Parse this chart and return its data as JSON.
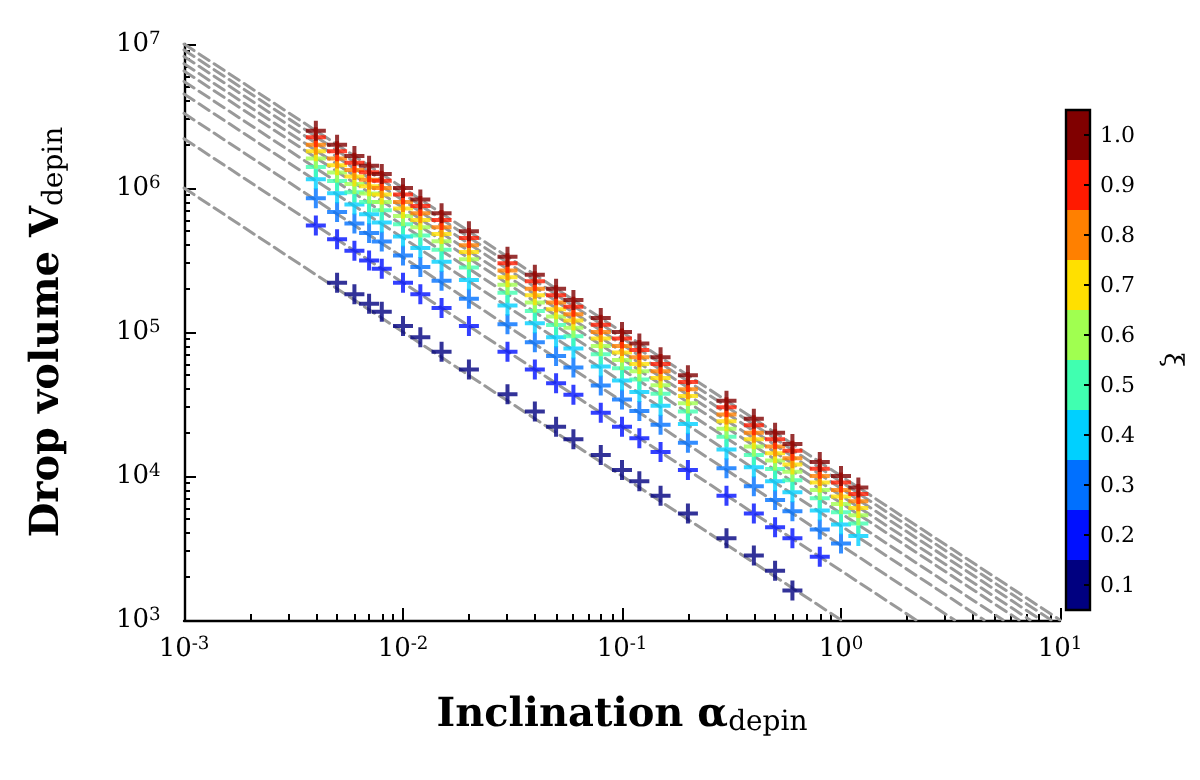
{
  "chart_data": {
    "type": "scatter",
    "xlabel": "Inclination α$_{depin}$",
    "ylabel": "Drop volume V$_{depin}$",
    "clabel": "ξ",
    "log": "xy",
    "grid": false,
    "marker": "cross",
    "xlim": [
      0.001,
      10
    ],
    "ylim": [
      1000,
      10000000
    ],
    "xticks": [
      {
        "value": 0.001,
        "label": "10$^{-3}$"
      },
      {
        "value": 0.01,
        "label": "10$^{-2}$"
      },
      {
        "value": 0.1,
        "label": "10$^{-1}$"
      },
      {
        "value": 1,
        "label": "10$^{0}$"
      },
      {
        "value": 10,
        "label": "10$^{1}$"
      }
    ],
    "yticks": [
      {
        "value": 1000,
        "label": "10$^{3}$"
      },
      {
        "value": 10000,
        "label": "10$^{4}$"
      },
      {
        "value": 100000,
        "label": "10$^{5}$"
      },
      {
        "value": 1000000,
        "label": "10$^{6}$"
      },
      {
        "value": 10000000,
        "label": "10$^{7}$"
      }
    ],
    "clim": [
      0.05,
      1.05
    ],
    "cticks": [
      0.1,
      0.2,
      0.3,
      0.4,
      0.5,
      0.6,
      0.7,
      0.8,
      0.9,
      {
        "value": 1,
        "label": "1.0"
      }
    ],
    "x": [
      0.004,
      0.005,
      0.006,
      0.007,
      0.008,
      0.01,
      0.012,
      0.015,
      0.02,
      0.03,
      0.04,
      0.05,
      0.06,
      0.08,
      0.1,
      0.12,
      0.15,
      0.2,
      0.3,
      0.4,
      0.5,
      0.6,
      0.8,
      1.0,
      1.2
    ],
    "series": [
      {
        "color": "#000080",
        "values": [
          null,
          220000,
          183000,
          157000,
          138000,
          110000,
          92000,
          73000,
          55000,
          37000,
          28000,
          22000,
          18000,
          14000,
          11000,
          9200,
          7300,
          5500,
          3700,
          2800,
          2200,
          1600,
          null,
          null,
          null
        ]
      },
      {
        "color": "#0010ff",
        "values": [
          550000,
          440000,
          367000,
          314000,
          275000,
          220000,
          183000,
          147000,
          110000,
          73000,
          55000,
          44000,
          36700,
          27500,
          22000,
          18300,
          14700,
          11000,
          7300,
          5500,
          4400,
          3700,
          2750,
          null,
          null
        ]
      },
      {
        "color": "#0070ff",
        "values": [
          850000,
          680000,
          567000,
          486000,
          425000,
          340000,
          283000,
          227000,
          170000,
          113000,
          85000,
          68000,
          56700,
          42500,
          34000,
          28300,
          22700,
          17000,
          11300,
          8500,
          6800,
          5700,
          4250,
          3400,
          null
        ]
      },
      {
        "color": "#00d0ff",
        "values": [
          1150000,
          920000,
          767000,
          657000,
          575000,
          460000,
          383000,
          307000,
          230000,
          153000,
          115000,
          92000,
          76700,
          57500,
          46000,
          38300,
          30700,
          23000,
          15300,
          11500,
          9200,
          7700,
          5750,
          4600,
          3830
        ]
      },
      {
        "color": "#40ffb0",
        "values": [
          1400000,
          1120000,
          933000,
          800000,
          700000,
          560000,
          467000,
          373000,
          280000,
          187000,
          140000,
          112000,
          93300,
          70000,
          56000,
          46700,
          37300,
          28000,
          18700,
          14000,
          11200,
          9330,
          7000,
          5600,
          4670
        ]
      },
      {
        "color": "#a0ff50",
        "values": [
          1600000,
          1280000,
          1067000,
          914000,
          800000,
          640000,
          533000,
          427000,
          320000,
          213000,
          160000,
          128000,
          107000,
          80000,
          64000,
          53300,
          42700,
          32000,
          21300,
          16000,
          12800,
          10700,
          8000,
          6400,
          5330
        ]
      },
      {
        "color": "#ffe000",
        "values": [
          1800000,
          1440000,
          1200000,
          1029000,
          900000,
          720000,
          600000,
          480000,
          360000,
          240000,
          180000,
          144000,
          120000,
          90000,
          72000,
          60000,
          48000,
          36000,
          24000,
          18000,
          14400,
          12000,
          9000,
          7200,
          6000
        ]
      },
      {
        "color": "#ff8000",
        "values": [
          2000000,
          1600000,
          1333000,
          1143000,
          1000000,
          800000,
          667000,
          533000,
          400000,
          267000,
          200000,
          160000,
          133000,
          100000,
          80000,
          66700,
          53300,
          40000,
          26700,
          20000,
          16000,
          13300,
          10000,
          8000,
          6670
        ]
      },
      {
        "color": "#ff1a00",
        "values": [
          2250000,
          1800000,
          1500000,
          1286000,
          1125000,
          900000,
          750000,
          600000,
          450000,
          300000,
          225000,
          180000,
          150000,
          112500,
          90000,
          75000,
          60000,
          45000,
          30000,
          22500,
          18000,
          15000,
          11250,
          9000,
          7500
        ]
      },
      {
        "color": "#800000",
        "values": [
          2500000,
          2000000,
          1667000,
          1429000,
          1250000,
          1000000,
          833000,
          667000,
          500000,
          333000,
          250000,
          200000,
          167000,
          125000,
          100000,
          83300,
          66700,
          50000,
          33300,
          25000,
          20000,
          16700,
          12500,
          10000,
          8330
        ]
      },
      {
        "type": "line",
        "line_style": "dashed",
        "marker": "none",
        "color": "#999999",
        "x": [
          0.001,
          1
        ],
        "values": [
          1000000,
          1000
        ]
      },
      {
        "type": "line",
        "line_style": "dashed",
        "marker": "none",
        "color": "#999999",
        "x": [
          0.001,
          2.2
        ],
        "values": [
          2200000,
          1000
        ]
      },
      {
        "type": "line",
        "line_style": "dashed",
        "marker": "none",
        "color": "#999999",
        "x": [
          0.001,
          3.3
        ],
        "values": [
          3300000,
          1000
        ]
      },
      {
        "type": "line",
        "line_style": "dashed",
        "marker": "none",
        "color": "#999999",
        "x": [
          0.001,
          4.5
        ],
        "values": [
          4500000,
          1000
        ]
      },
      {
        "type": "line",
        "line_style": "dashed",
        "marker": "none",
        "color": "#999999",
        "x": [
          0.001,
          5.5
        ],
        "values": [
          5500000,
          1000
        ]
      },
      {
        "type": "line",
        "line_style": "dashed",
        "marker": "none",
        "color": "#999999",
        "x": [
          0.001,
          6.5
        ],
        "values": [
          6500000,
          1000
        ]
      },
      {
        "type": "line",
        "line_style": "dashed",
        "marker": "none",
        "color": "#999999",
        "x": [
          0.001,
          7.3
        ],
        "values": [
          7300000,
          1000
        ]
      },
      {
        "type": "line",
        "line_style": "dashed",
        "marker": "none",
        "color": "#999999",
        "x": [
          0.001,
          8.2
        ],
        "values": [
          8200000,
          1000
        ]
      },
      {
        "type": "line",
        "line_style": "dashed",
        "marker": "none",
        "color": "#999999",
        "x": [
          0.001,
          9.1
        ],
        "values": [
          9100000,
          1000
        ]
      },
      {
        "type": "line",
        "line_style": "dashed",
        "marker": "none",
        "color": "#999999",
        "x": [
          0.001,
          10
        ],
        "values": [
          10000000,
          1000
        ]
      }
    ]
  }
}
